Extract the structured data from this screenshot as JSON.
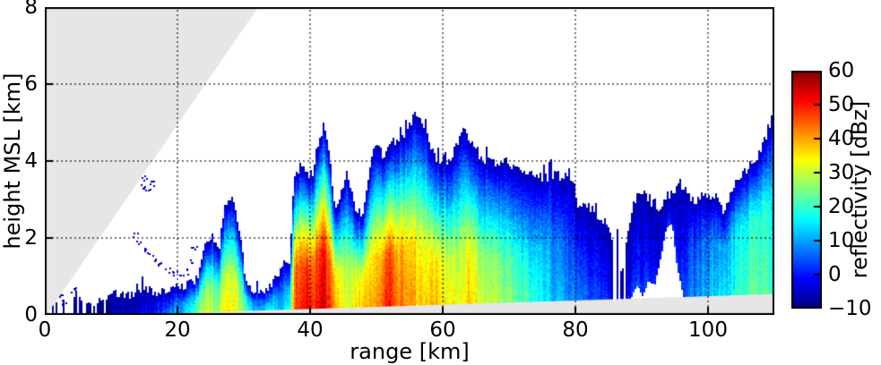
{
  "chart_data": {
    "type": "heatmap",
    "title": "",
    "xlabel": "range [km]",
    "ylabel": "height MSL [km]",
    "value_label": "reflectivity [dBz]",
    "xlim": [
      0,
      110
    ],
    "ylim": [
      0,
      8
    ],
    "vlim": [
      -10,
      60
    ],
    "xticks": [
      0,
      20,
      40,
      60,
      80,
      100
    ],
    "yticks": [
      0,
      2,
      4,
      6,
      8
    ],
    "grid": true,
    "colormap": "jet",
    "colorbar": {
      "label": "reflectivity [dBz]",
      "min": -10,
      "max": 60,
      "ticks": [
        {
          "v": 60,
          "label": "60"
        },
        {
          "v": 50,
          "label": "50"
        },
        {
          "v": 40,
          "label": "40"
        },
        {
          "v": 30,
          "label": "30"
        },
        {
          "v": 20,
          "label": "20"
        },
        {
          "v": 10,
          "label": "10"
        },
        {
          "v": 0,
          "label": "0"
        },
        {
          "v": -10,
          "label": "−10"
        }
      ]
    },
    "scan_mask_color": "#e6e6e6",
    "upper_beam_edge": {
      "r_at_h0": 0.27,
      "r_at_h8": 32.16
    },
    "lower_beam_edge": {
      "r_at_h0": 12.0,
      "h_at_r110": 0.54
    },
    "profile_fields": [
      "range_km",
      "echo_top_km",
      "dbz_low",
      "echo_base_km",
      "column_fill_prob",
      "core_depth_frac"
    ],
    "echo_profile": [
      [
        0,
        0.3,
        -6,
        0,
        0.35
      ],
      [
        1.5,
        0.3,
        -6,
        0,
        0.3
      ],
      [
        3,
        0.4,
        -5,
        0,
        0.45
      ],
      [
        4.6,
        0.55,
        -4,
        0,
        0.85
      ],
      [
        5.5,
        0.45,
        -5,
        0,
        0.6
      ],
      [
        6.5,
        0.25,
        -7,
        0,
        0.25
      ],
      [
        8,
        0.3,
        -6,
        0,
        0.5
      ],
      [
        9.5,
        0.4,
        -5,
        0,
        0.95
      ],
      [
        11,
        0.6,
        -3
      ],
      [
        12.5,
        0.5,
        -4
      ],
      [
        14,
        0.55,
        -3
      ],
      [
        15.5,
        0.65,
        0
      ],
      [
        17,
        0.55,
        3
      ],
      [
        18.5,
        0.6,
        6
      ],
      [
        20,
        0.7,
        11
      ],
      [
        21.5,
        0.8,
        15
      ],
      [
        23,
        0.95,
        24
      ],
      [
        24.3,
        1.85,
        30
      ],
      [
        25.3,
        2.05,
        28
      ],
      [
        26.2,
        1.65,
        26
      ],
      [
        27.1,
        2.85,
        36
      ],
      [
        28,
        3.05,
        35
      ],
      [
        28.8,
        2.7,
        33
      ],
      [
        29.5,
        2.1,
        29
      ],
      [
        30.3,
        0.9,
        24
      ],
      [
        31.2,
        0.55,
        14
      ],
      [
        32.2,
        0.5,
        11
      ],
      [
        33.2,
        0.65,
        14
      ],
      [
        34.2,
        0.8,
        17
      ],
      [
        35.2,
        1.0,
        14
      ],
      [
        35.9,
        1.3,
        13
      ],
      [
        36.9,
        1.25,
        17
      ],
      [
        37.7,
        3.6,
        46
      ],
      [
        38.4,
        3.85,
        48
      ],
      [
        39.2,
        3.85,
        53
      ],
      [
        40.1,
        3.35,
        50
      ],
      [
        40.8,
        4.1,
        48
      ],
      [
        41.6,
        4.7,
        55
      ],
      [
        42.3,
        4.8,
        54
      ],
      [
        43,
        4.2,
        46
      ],
      [
        43.7,
        2.75,
        40
      ],
      [
        44.5,
        2.9,
        38
      ],
      [
        45.5,
        3.7,
        32
      ],
      [
        46.2,
        3.2,
        33
      ],
      [
        47,
        2.6,
        36
      ],
      [
        48,
        2.5,
        38
      ],
      [
        48.7,
        3.5,
        40
      ],
      [
        49.5,
        4.2,
        38
      ],
      [
        50.2,
        4.4,
        40
      ],
      [
        51,
        4.15,
        44
      ],
      [
        51.8,
        4.3,
        51
      ],
      [
        52.5,
        4.5,
        46
      ],
      [
        53.3,
        4.55,
        42
      ],
      [
        54.2,
        4.7,
        44
      ],
      [
        55,
        4.95,
        41
      ],
      [
        55.8,
        5.15,
        39
      ],
      [
        56.8,
        5.1,
        38
      ],
      [
        57.7,
        4.6,
        37
      ],
      [
        58.5,
        4.2,
        38
      ],
      [
        59.3,
        4.0,
        39
      ],
      [
        60.3,
        3.95,
        35
      ],
      [
        61.2,
        4.1,
        33
      ],
      [
        62.3,
        4.5,
        33
      ],
      [
        63.3,
        4.85,
        35
      ],
      [
        64,
        4.6,
        39
      ],
      [
        64.8,
        4.25,
        35
      ],
      [
        66,
        4.0,
        31
      ],
      [
        67,
        4.15,
        30
      ],
      [
        68,
        3.95,
        30
      ],
      [
        69,
        4.05,
        27
      ],
      [
        70.5,
        3.9,
        25
      ],
      [
        72,
        3.8,
        22
      ],
      [
        73.5,
        3.65,
        19
      ],
      [
        75,
        3.55,
        16,
        0,
        1,
        0.4
      ],
      [
        76.5,
        3.65,
        13,
        0,
        1,
        0.4
      ],
      [
        78,
        3.6,
        10,
        0,
        1,
        0.4
      ],
      [
        79.5,
        3.55,
        8,
        0,
        1,
        0.4
      ],
      [
        80.5,
        2.85,
        7
      ],
      [
        81.5,
        2.9,
        5
      ],
      [
        82.5,
        2.75,
        4
      ],
      [
        83.3,
        2.6,
        4
      ],
      [
        84.2,
        2.5,
        2
      ],
      [
        85.2,
        2.3,
        0,
        0,
        0.75
      ],
      [
        86,
        1.2,
        -4,
        0,
        0.4
      ],
      [
        86.4,
        2.4,
        -2,
        0,
        0.6
      ],
      [
        87,
        1.0,
        -5,
        0,
        0.4
      ],
      [
        87.8,
        1.9,
        -1,
        0,
        0.9
      ],
      [
        88.6,
        2.8,
        1,
        0.55
      ],
      [
        89.4,
        3.1,
        3,
        0.8
      ],
      [
        90.2,
        3.25,
        3,
        0.5
      ],
      [
        91,
        3.0,
        2,
        0.9
      ],
      [
        92,
        2.9,
        1,
        0.8
      ],
      [
        93,
        2.7,
        0,
        1.6
      ],
      [
        93.8,
        3.1,
        0,
        2.3
      ],
      [
        94.6,
        3.2,
        1,
        2.4
      ],
      [
        95.4,
        3.3,
        2,
        1.2
      ],
      [
        96.2,
        3.35,
        4,
        0.6
      ],
      [
        97.2,
        3.1,
        6,
        0,
        1,
        0.5
      ],
      [
        98.2,
        2.95,
        8,
        0,
        1,
        0.5
      ],
      [
        99.2,
        3.1,
        10,
        0,
        1,
        0.5
      ],
      [
        100.2,
        3.0,
        12,
        0,
        1,
        0.5
      ],
      [
        101.3,
        3.1,
        14,
        0,
        1,
        0.5
      ],
      [
        102.3,
        2.6,
        13,
        0,
        1,
        0.5
      ],
      [
        103.3,
        3.1,
        16,
        0,
        1,
        0.55
      ],
      [
        104.3,
        3.5,
        19,
        0,
        1,
        0.55
      ],
      [
        105.3,
        3.7,
        21,
        0,
        1,
        0.55
      ],
      [
        106.3,
        3.9,
        22,
        0,
        1,
        0.55
      ],
      [
        107.3,
        4.1,
        23,
        0,
        1,
        0.55
      ],
      [
        108.3,
        4.4,
        22,
        0,
        1,
        0.55
      ],
      [
        109.2,
        4.9,
        21,
        0,
        1,
        0.5
      ],
      [
        110,
        5.3,
        19,
        0,
        1,
        0.5
      ]
    ],
    "isolated_echo_fields": [
      "range_km",
      "height_km",
      "dbz"
    ],
    "isolated_echoes": [
      [
        2.2,
        0.55,
        -6
      ],
      [
        2.8,
        0.35,
        -5
      ],
      [
        4.2,
        0.65,
        -6
      ],
      [
        13.5,
        2.1,
        -5
      ],
      [
        14.2,
        1.9,
        -6
      ],
      [
        15,
        1.75,
        -5
      ],
      [
        15.8,
        1.55,
        -6
      ],
      [
        16.6,
        1.45,
        -5
      ],
      [
        17.5,
        1.3,
        -6
      ],
      [
        18.4,
        1.2,
        -5
      ],
      [
        19.4,
        1.1,
        -6
      ],
      [
        20.4,
        1.05,
        -5
      ],
      [
        21.3,
        1.15,
        -6
      ],
      [
        22.1,
        1.45,
        -4
      ],
      [
        22.4,
        1.7,
        -5
      ],
      [
        14.6,
        3.35,
        -3
      ],
      [
        15,
        3.55,
        -4
      ],
      [
        15.4,
        3.3,
        -4
      ],
      [
        16.1,
        3.45,
        -5
      ]
    ]
  }
}
